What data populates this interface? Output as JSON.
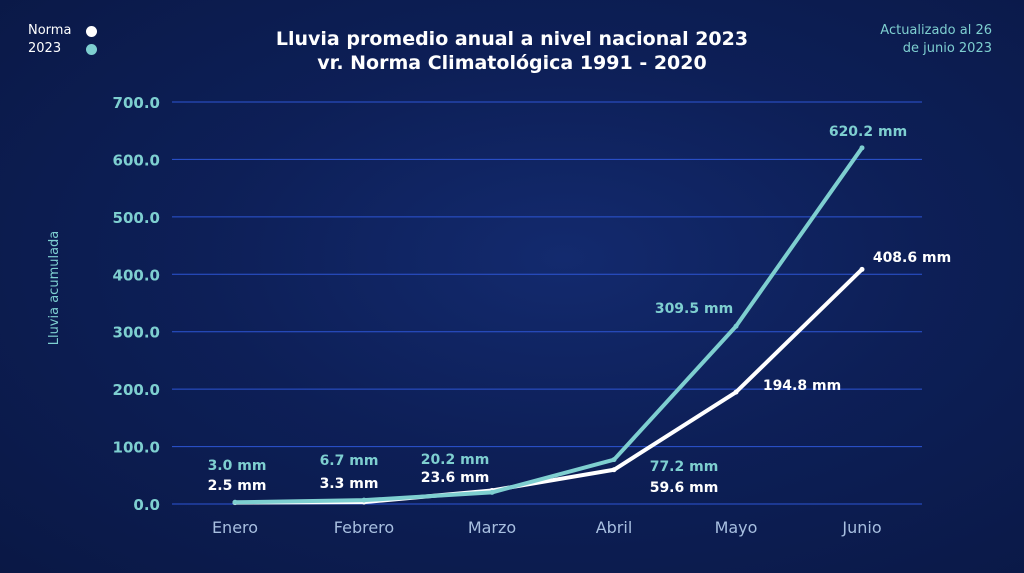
{
  "legend": {
    "items": [
      {
        "label": "Norma",
        "color": "#ffffff"
      },
      {
        "label": "2023",
        "color": "#7ecfd0"
      }
    ]
  },
  "title": {
    "line1": "Lluvia promedio anual a nivel nacional 2023",
    "line2": "vr. Norma Climatológica 1991 - 2020"
  },
  "update_note": {
    "line1": "Actualizado al 26",
    "line2": "de junio 2023"
  },
  "colors": {
    "norma": "#ffffff",
    "y2023": "#7ecfd0",
    "grid": "#2d55d4",
    "axis_text": "#7ecfd0",
    "month_text": "#a8bfe0"
  },
  "chart_data": {
    "type": "line",
    "categories": [
      "Enero",
      "Febrero",
      "Marzo",
      "Abril",
      "Mayo",
      "Junio"
    ],
    "ylabel": "Lluvia acumulada",
    "ylim": [
      0,
      700
    ],
    "yticks": [
      "0.0",
      "100.0",
      "200.0",
      "300.0",
      "400.0",
      "500.0",
      "600.0",
      "700.0"
    ],
    "grid": true,
    "series": [
      {
        "name": "Norma",
        "values": [
          2.5,
          3.3,
          23.6,
          59.6,
          194.8,
          408.6
        ],
        "labels": [
          "2.5 mm",
          "3.3 mm",
          "23.6 mm",
          "59.6 mm",
          "194.8 mm",
          "408.6 mm"
        ]
      },
      {
        "name": "2023",
        "values": [
          3.0,
          6.7,
          20.2,
          77.2,
          309.5,
          620.2
        ],
        "labels": [
          "3.0 mm",
          "6.7 mm",
          "20.2 mm",
          "77.2 mm",
          "309.5 mm",
          "620.2 mm"
        ]
      }
    ]
  }
}
